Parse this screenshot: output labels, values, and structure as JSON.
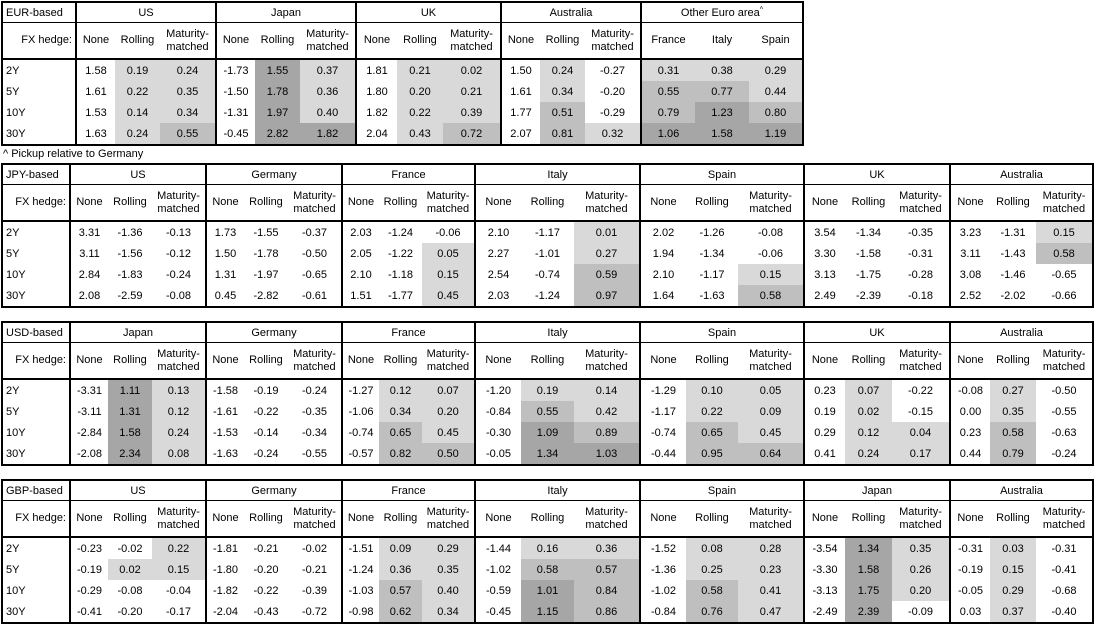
{
  "footnote": "^ Pickup relative to Germany",
  "fx_hedge_label": "FX hedge:",
  "row_labels": [
    "2Y",
    "5Y",
    "10Y",
    "30Y"
  ],
  "hedge_columns": [
    "None",
    "Rolling",
    "Maturity-matched"
  ],
  "colors": {
    "shade_light": "#d9d9d9",
    "shade_medium": "#bfbfbf",
    "shade_dark": "#a6a6a6",
    "border": "#000000",
    "background": "#ffffff"
  },
  "shade_legend": {
    "white": "negative or None column",
    "light": "0.00 to 0.49",
    "medium": "0.50 to 0.99",
    "dark": "1.00 and above"
  },
  "tables": [
    {
      "id": "eur-based",
      "label": "EUR-based",
      "groups": [
        {
          "name": "US",
          "columns": [
            "None",
            "Rolling",
            "Maturity-matched"
          ],
          "rows": [
            [
              "1.58",
              "0.19",
              "0.24"
            ],
            [
              "1.61",
              "0.22",
              "0.35"
            ],
            [
              "1.53",
              "0.14",
              "0.34"
            ],
            [
              "1.63",
              "0.24",
              "0.55"
            ]
          ]
        },
        {
          "name": "Japan",
          "columns": [
            "None",
            "Rolling",
            "Maturity-matched"
          ],
          "rows": [
            [
              "-1.73",
              "1.55",
              "0.37"
            ],
            [
              "-1.50",
              "1.78",
              "0.36"
            ],
            [
              "-1.31",
              "1.97",
              "0.40"
            ],
            [
              "-0.45",
              "2.82",
              "1.82"
            ]
          ]
        },
        {
          "name": "UK",
          "columns": [
            "None",
            "Rolling",
            "Maturity-matched"
          ],
          "rows": [
            [
              "1.81",
              "0.21",
              "0.02"
            ],
            [
              "1.80",
              "0.20",
              "0.21"
            ],
            [
              "1.82",
              "0.22",
              "0.39"
            ],
            [
              "2.04",
              "0.43",
              "0.72"
            ]
          ]
        },
        {
          "name": "Australia",
          "columns": [
            "None",
            "Rolling",
            "Maturity-matched"
          ],
          "rows": [
            [
              "1.50",
              "0.24",
              "-0.27"
            ],
            [
              "1.61",
              "0.34",
              "-0.20"
            ],
            [
              "1.77",
              "0.51",
              "-0.29"
            ],
            [
              "2.07",
              "0.81",
              "0.32"
            ]
          ]
        },
        {
          "name": "Other Euro area",
          "sup": "^",
          "columns": [
            "France",
            "Italy",
            "Spain"
          ],
          "rows": [
            [
              "0.31",
              "0.38",
              "0.29"
            ],
            [
              "0.55",
              "0.77",
              "0.44"
            ],
            [
              "0.79",
              "1.23",
              "0.80"
            ],
            [
              "1.06",
              "1.58",
              "1.19"
            ]
          ]
        }
      ]
    },
    {
      "id": "jpy-based",
      "label": "JPY-based",
      "groups": [
        {
          "name": "US",
          "columns": [
            "None",
            "Rolling",
            "Maturity-matched"
          ],
          "rows": [
            [
              "3.31",
              "-1.36",
              "-0.13"
            ],
            [
              "3.11",
              "-1.56",
              "-0.12"
            ],
            [
              "2.84",
              "-1.83",
              "-0.24"
            ],
            [
              "2.08",
              "-2.59",
              "-0.08"
            ]
          ]
        },
        {
          "name": "Germany",
          "columns": [
            "None",
            "Rolling",
            "Maturity-matched"
          ],
          "rows": [
            [
              "1.73",
              "-1.55",
              "-0.37"
            ],
            [
              "1.50",
              "-1.78",
              "-0.50"
            ],
            [
              "1.31",
              "-1.97",
              "-0.65"
            ],
            [
              "0.45",
              "-2.82",
              "-0.61"
            ]
          ]
        },
        {
          "name": "France",
          "columns": [
            "None",
            "Rolling",
            "Maturity-matched"
          ],
          "rows": [
            [
              "2.03",
              "-1.24",
              "-0.06"
            ],
            [
              "2.05",
              "-1.22",
              "0.05"
            ],
            [
              "2.10",
              "-1.18",
              "0.15"
            ],
            [
              "1.51",
              "-1.77",
              "0.45"
            ]
          ]
        },
        {
          "name": "Italy",
          "columns": [
            "None",
            "Rolling",
            "Maturity-matched"
          ],
          "rows": [
            [
              "2.10",
              "-1.17",
              "0.01"
            ],
            [
              "2.27",
              "-1.01",
              "0.27"
            ],
            [
              "2.54",
              "-0.74",
              "0.59"
            ],
            [
              "2.03",
              "-1.24",
              "0.97"
            ]
          ]
        },
        {
          "name": "Spain",
          "columns": [
            "None",
            "Rolling",
            "Maturity-matched"
          ],
          "rows": [
            [
              "2.02",
              "-1.26",
              "-0.08"
            ],
            [
              "1.94",
              "-1.34",
              "-0.06"
            ],
            [
              "2.10",
              "-1.17",
              "0.15"
            ],
            [
              "1.64",
              "-1.63",
              "0.58"
            ]
          ]
        },
        {
          "name": "UK",
          "columns": [
            "None",
            "Rolling",
            "Maturity-matched"
          ],
          "rows": [
            [
              "3.54",
              "-1.34",
              "-0.35"
            ],
            [
              "3.30",
              "-1.58",
              "-0.31"
            ],
            [
              "3.13",
              "-1.75",
              "-0.28"
            ],
            [
              "2.49",
              "-2.39",
              "-0.18"
            ]
          ]
        },
        {
          "name": "Australia",
          "columns": [
            "None",
            "Rolling",
            "Maturity-matched"
          ],
          "rows": [
            [
              "3.23",
              "-1.31",
              "0.15"
            ],
            [
              "3.11",
              "-1.43",
              "0.58"
            ],
            [
              "3.08",
              "-1.46",
              "-0.65"
            ],
            [
              "2.52",
              "-2.02",
              "-0.66"
            ]
          ]
        }
      ]
    },
    {
      "id": "usd-based",
      "label": "USD-based",
      "groups": [
        {
          "name": "Japan",
          "columns": [
            "None",
            "Rolling",
            "Maturity-matched"
          ],
          "rows": [
            [
              "-3.31",
              "1.11",
              "0.13"
            ],
            [
              "-3.11",
              "1.31",
              "0.12"
            ],
            [
              "-2.84",
              "1.58",
              "0.24"
            ],
            [
              "-2.08",
              "2.34",
              "0.08"
            ]
          ]
        },
        {
          "name": "Germany",
          "columns": [
            "None",
            "Rolling",
            "Maturity-matched"
          ],
          "rows": [
            [
              "-1.58",
              "-0.19",
              "-0.24"
            ],
            [
              "-1.61",
              "-0.22",
              "-0.35"
            ],
            [
              "-1.53",
              "-0.14",
              "-0.34"
            ],
            [
              "-1.63",
              "-0.24",
              "-0.55"
            ]
          ]
        },
        {
          "name": "France",
          "columns": [
            "None",
            "Rolling",
            "Maturity-matched"
          ],
          "rows": [
            [
              "-1.27",
              "0.12",
              "0.07"
            ],
            [
              "-1.06",
              "0.34",
              "0.20"
            ],
            [
              "-0.74",
              "0.65",
              "0.45"
            ],
            [
              "-0.57",
              "0.82",
              "0.50"
            ]
          ]
        },
        {
          "name": "Italy",
          "columns": [
            "None",
            "Rolling",
            "Maturity-matched"
          ],
          "rows": [
            [
              "-1.20",
              "0.19",
              "0.14"
            ],
            [
              "-0.84",
              "0.55",
              "0.42"
            ],
            [
              "-0.30",
              "1.09",
              "0.89"
            ],
            [
              "-0.05",
              "1.34",
              "1.03"
            ]
          ]
        },
        {
          "name": "Spain",
          "columns": [
            "None",
            "Rolling",
            "Maturity-matched"
          ],
          "rows": [
            [
              "-1.29",
              "0.10",
              "0.05"
            ],
            [
              "-1.17",
              "0.22",
              "0.09"
            ],
            [
              "-0.74",
              "0.65",
              "0.45"
            ],
            [
              "-0.44",
              "0.95",
              "0.64"
            ]
          ]
        },
        {
          "name": "UK",
          "columns": [
            "None",
            "Rolling",
            "Maturity-matched"
          ],
          "rows": [
            [
              "0.23",
              "0.07",
              "-0.22"
            ],
            [
              "0.19",
              "0.02",
              "-0.15"
            ],
            [
              "0.29",
              "0.12",
              "0.04"
            ],
            [
              "0.41",
              "0.24",
              "0.17"
            ]
          ]
        },
        {
          "name": "Australia",
          "columns": [
            "None",
            "Rolling",
            "Maturity-matched"
          ],
          "rows": [
            [
              "-0.08",
              "0.27",
              "-0.50"
            ],
            [
              "0.00",
              "0.35",
              "-0.55"
            ],
            [
              "0.23",
              "0.58",
              "-0.63"
            ],
            [
              "0.44",
              "0.79",
              "-0.24"
            ]
          ]
        }
      ]
    },
    {
      "id": "gbp-based",
      "label": "GBP-based",
      "groups": [
        {
          "name": "US",
          "columns": [
            "None",
            "Rolling",
            "Maturity-matched"
          ],
          "rows": [
            [
              "-0.23",
              "-0.02",
              "0.22"
            ],
            [
              "-0.19",
              "0.02",
              "0.15"
            ],
            [
              "-0.29",
              "-0.08",
              "-0.04"
            ],
            [
              "-0.41",
              "-0.20",
              "-0.17"
            ]
          ]
        },
        {
          "name": "Germany",
          "columns": [
            "None",
            "Rolling",
            "Maturity-matched"
          ],
          "rows": [
            [
              "-1.81",
              "-0.21",
              "-0.02"
            ],
            [
              "-1.80",
              "-0.20",
              "-0.21"
            ],
            [
              "-1.82",
              "-0.22",
              "-0.39"
            ],
            [
              "-2.04",
              "-0.43",
              "-0.72"
            ]
          ]
        },
        {
          "name": "France",
          "columns": [
            "None",
            "Rolling",
            "Maturity-matched"
          ],
          "rows": [
            [
              "-1.51",
              "0.09",
              "0.29"
            ],
            [
              "-1.24",
              "0.36",
              "0.35"
            ],
            [
              "-1.03",
              "0.57",
              "0.40"
            ],
            [
              "-0.98",
              "0.62",
              "0.34"
            ]
          ]
        },
        {
          "name": "Italy",
          "columns": [
            "None",
            "Rolling",
            "Maturity-matched"
          ],
          "rows": [
            [
              "-1.44",
              "0.16",
              "0.36"
            ],
            [
              "-1.02",
              "0.58",
              "0.57"
            ],
            [
              "-0.59",
              "1.01",
              "0.84"
            ],
            [
              "-0.45",
              "1.15",
              "0.86"
            ]
          ]
        },
        {
          "name": "Spain",
          "columns": [
            "None",
            "Rolling",
            "Maturity-matched"
          ],
          "rows": [
            [
              "-1.52",
              "0.08",
              "0.28"
            ],
            [
              "-1.36",
              "0.25",
              "0.23"
            ],
            [
              "-1.02",
              "0.58",
              "0.41"
            ],
            [
              "-0.84",
              "0.76",
              "0.47"
            ]
          ]
        },
        {
          "name": "Japan",
          "columns": [
            "None",
            "Rolling",
            "Maturity-matched"
          ],
          "rows": [
            [
              "-3.54",
              "1.34",
              "0.35"
            ],
            [
              "-3.30",
              "1.58",
              "0.26"
            ],
            [
              "-3.13",
              "1.75",
              "0.20"
            ],
            [
              "-2.49",
              "2.39",
              "-0.09"
            ]
          ]
        },
        {
          "name": "Australia",
          "columns": [
            "None",
            "Rolling",
            "Maturity-matched"
          ],
          "rows": [
            [
              "-0.31",
              "0.03",
              "-0.31"
            ],
            [
              "-0.19",
              "0.15",
              "-0.41"
            ],
            [
              "-0.05",
              "0.29",
              "-0.68"
            ],
            [
              "0.03",
              "0.37",
              "-0.40"
            ]
          ]
        }
      ]
    }
  ]
}
